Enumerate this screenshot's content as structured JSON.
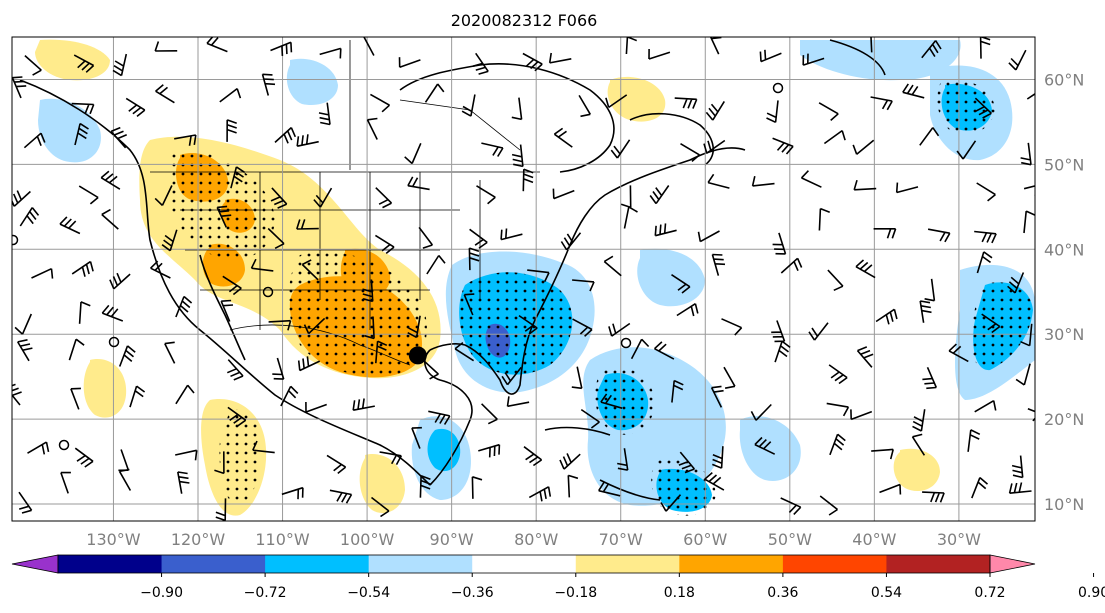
{
  "map": {
    "title": "2020082312 F066",
    "lon_labels": [
      "130°W",
      "120°W",
      "110°W",
      "100°W",
      "90°W",
      "80°W",
      "70°W",
      "60°W",
      "50°W",
      "40°W",
      "30°W"
    ],
    "lat_labels": [
      "60°N",
      "50°N",
      "40°N",
      "30°N",
      "20°N",
      "10°N"
    ],
    "lon_values": [
      -130,
      -120,
      -110,
      -100,
      -90,
      -80,
      -70,
      -60,
      -50,
      -40,
      -30
    ],
    "lat_values": [
      60,
      50,
      40,
      30,
      20,
      10
    ],
    "lon_range": [
      -142,
      -21
    ],
    "lat_range": [
      8,
      65
    ],
    "marker": {
      "lon": -94,
      "lat": 27.5
    }
  },
  "colorbar": {
    "tick_labels": [
      "−0.90",
      "−0.72",
      "−0.54",
      "−0.36",
      "−0.18",
      "0.18",
      "0.36",
      "0.54",
      "0.72",
      "0.90"
    ],
    "colors": [
      "#9932cc",
      "#00008b",
      "#3a5fcd",
      "#00bfff",
      "#b0e0ff",
      "#ffffff",
      "#ffeb8c",
      "#ffa500",
      "#ff4500",
      "#b22222",
      "#ff88aa"
    ]
  }
}
